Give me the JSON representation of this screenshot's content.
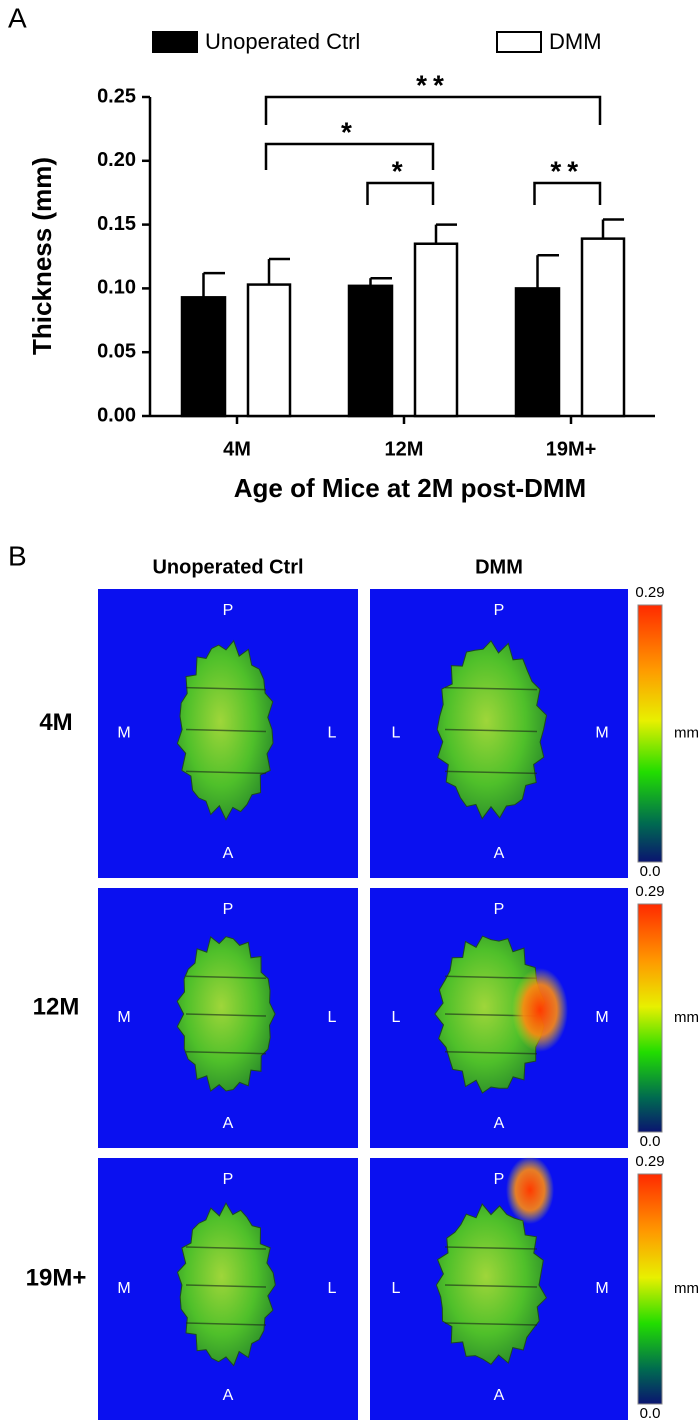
{
  "chart_data": {
    "type": "bar",
    "panel_label": "A",
    "y_label": "Thickness (mm)",
    "x_label": "Age of Mice at 2M post-DMM",
    "categories": [
      "4M",
      "12M",
      "19M+"
    ],
    "series": [
      {
        "name": "Unoperated Ctrl",
        "color": "#000000",
        "values": [
          0.093,
          0.102,
          0.1
        ],
        "errors": [
          0.019,
          0.006,
          0.026
        ]
      },
      {
        "name": "DMM",
        "color": "#ffffff",
        "values": [
          0.103,
          0.135,
          0.139
        ],
        "errors": [
          0.02,
          0.015,
          0.015
        ]
      }
    ],
    "ylim": [
      0,
      0.25
    ],
    "yticks": [
      {
        "value": 0,
        "label": "0.00"
      },
      0.05,
      {
        "value": 0.1,
        "label": "0.10"
      },
      0.15,
      {
        "value": 0.2,
        "label": "0.20"
      },
      0.25
    ],
    "annotations": [
      "**",
      "*",
      "*",
      "**"
    ],
    "legend": "top"
  },
  "panel_b": {
    "label": "B",
    "columns": [
      "Unoperated Ctrl",
      "DMM"
    ],
    "rows": [
      {
        "label": "4M",
        "panels": [
          {
            "top": "P",
            "bottom": "A",
            "left": "M",
            "right": "L"
          },
          {
            "top": "P",
            "bottom": "A",
            "left": "L",
            "right": "M"
          }
        ],
        "colorbar": {
          "max": "0.29",
          "unit": "mm",
          "min": "0.0"
        }
      },
      {
        "label": "12M",
        "panels": [
          {
            "top": "P",
            "bottom": "A",
            "left": "M",
            "right": "L"
          },
          {
            "top": "P",
            "bottom": "A",
            "left": "L",
            "right": "M"
          }
        ],
        "colorbar": {
          "max": "0.29",
          "unit": "mm",
          "min": "0.0"
        }
      },
      {
        "label": "19M+",
        "panels": [
          {
            "top": "P",
            "bottom": "A",
            "left": "M",
            "right": "L"
          },
          {
            "top": "P",
            "bottom": "A",
            "left": "L",
            "right": "M"
          }
        ],
        "colorbar": {
          "max": "0.29",
          "unit": "mm",
          "min": "0.0"
        }
      }
    ]
  }
}
